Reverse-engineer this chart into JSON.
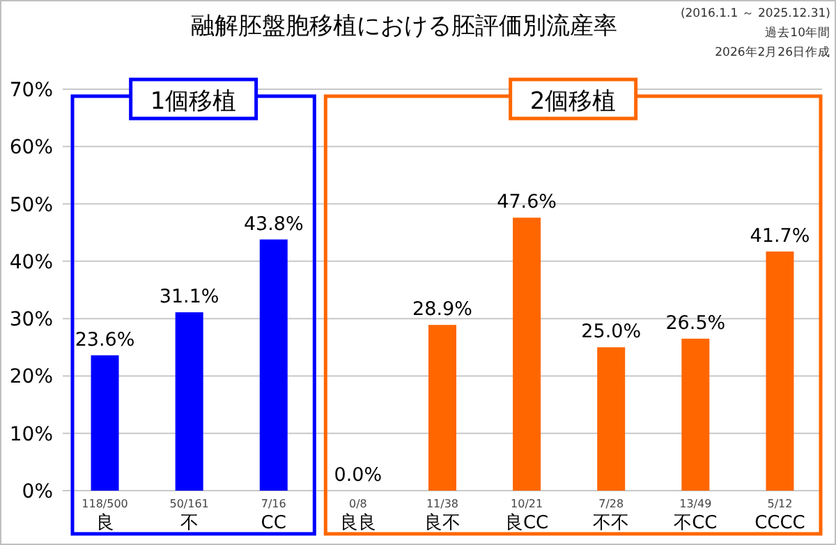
{
  "chart_data": {
    "type": "bar",
    "title": "融解胚盤胞移植における胚評価別流産率",
    "categories": [
      "良",
      "不",
      "CC",
      "良良",
      "良不",
      "良CC",
      "不不",
      "不CC",
      "CCCC"
    ],
    "values": [
      23.6,
      31.1,
      43.8,
      0.0,
      28.9,
      47.6,
      25.0,
      26.5,
      41.7
    ],
    "colors": [
      "#0000ff",
      "#0000ff",
      "#0000ff",
      "#ff6600",
      "#ff6600",
      "#ff6600",
      "#ff6600",
      "#ff6600",
      "#ff6600"
    ],
    "value_labels": [
      "23.6%",
      "31.1%",
      "43.8%",
      "0.0%",
      "28.9%",
      "47.6%",
      "25.0%",
      "26.5%",
      "41.7%"
    ],
    "ylim": [
      0,
      70
    ],
    "yticks": [
      {
        "value": 0,
        "label": "0%"
      },
      {
        "value": 10,
        "label": "10%"
      },
      {
        "value": 20,
        "label": "20%"
      },
      {
        "value": 30,
        "label": "30%"
      },
      {
        "value": 40,
        "label": "40%"
      },
      {
        "value": 50,
        "label": "50%"
      },
      {
        "value": 60,
        "label": "60%"
      },
      {
        "value": 70,
        "label": "70%"
      }
    ],
    "grid": "y",
    "annotations": [
      "(2016.1.1 ～ 2025.12.31)",
      "過去10年間",
      "2026年2月26日作成",
      "1個移植",
      "2個移植",
      {
        "text": "118/500",
        "x": "良",
        "y": 0
      },
      {
        "text": "50/161",
        "x": "不",
        "y": 0
      },
      {
        "text": "7/16",
        "x": "CC",
        "y": 0
      },
      {
        "text": "0/8",
        "x": "良良",
        "y": 0
      },
      {
        "text": "11/38",
        "x": "良不",
        "y": 0
      },
      {
        "text": "10/21",
        "x": "良CC",
        "y": 0
      },
      {
        "text": "7/28",
        "x": "不不",
        "y": 0
      },
      {
        "text": "13/49",
        "x": "不CC",
        "y": 0
      },
      {
        "text": "5/12",
        "x": "CCCC",
        "y": 0
      }
    ]
  }
}
